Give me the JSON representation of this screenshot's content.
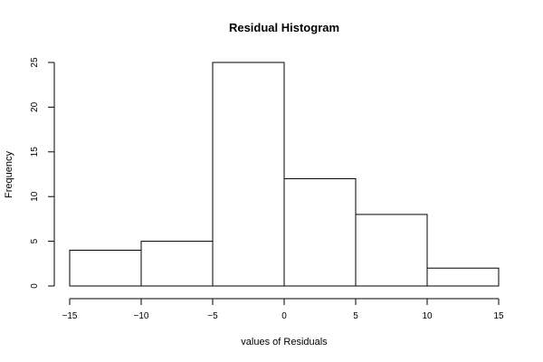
{
  "chart_data": {
    "type": "bar",
    "title": "Residual Histogram",
    "xlabel": "values of Residuals",
    "ylabel": "Frequency",
    "bins": [
      {
        "x0": -15,
        "x1": -10,
        "count": 4
      },
      {
        "x0": -10,
        "x1": -5,
        "count": 5
      },
      {
        "x0": -5,
        "x1": 0,
        "count": 25
      },
      {
        "x0": 0,
        "x1": 5,
        "count": 12
      },
      {
        "x0": 5,
        "x1": 10,
        "count": 8
      },
      {
        "x0": 10,
        "x1": 15,
        "count": 2
      }
    ],
    "xlim": [
      -15,
      15
    ],
    "ylim": [
      0,
      25
    ],
    "x_ticks": [
      -15,
      -10,
      -5,
      0,
      5,
      10,
      15
    ],
    "y_ticks": [
      0,
      5,
      10,
      15,
      20,
      25
    ],
    "grid": false,
    "bar_fill": "#ffffff",
    "bar_stroke": "#000000"
  }
}
